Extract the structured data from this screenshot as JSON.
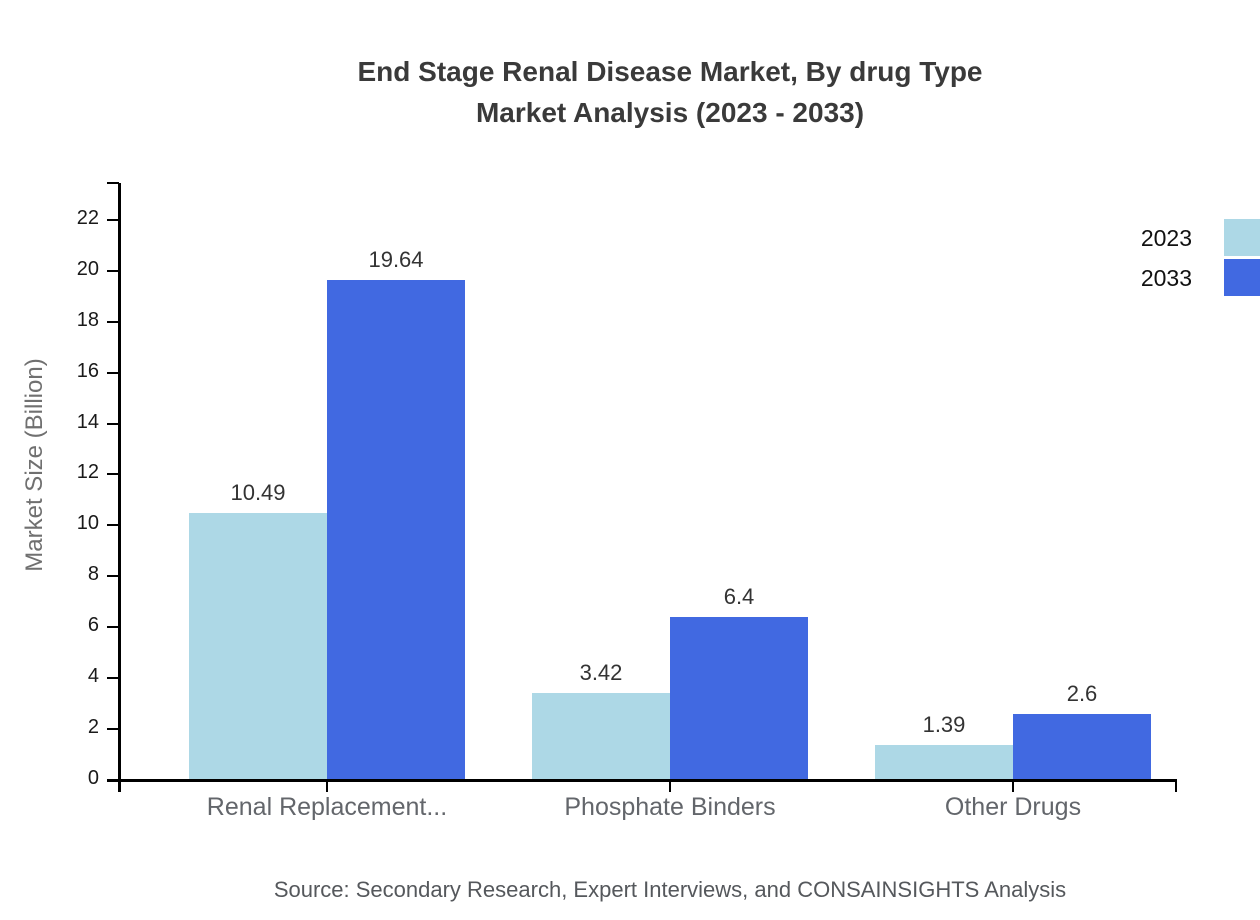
{
  "title": {
    "line1": "End Stage Renal Disease Market, By drug Type",
    "line2": "Market Analysis (2023 - 2033)"
  },
  "source": "Source: Secondary Research, Expert Interviews, and CONSAINSIGHTS Analysis",
  "chart_data": {
    "type": "bar",
    "title": "End Stage Renal Disease Market, By drug Type Market Analysis (2023 - 2033)",
    "categories": [
      "Renal Replacement...",
      "Phosphate Binders",
      "Other Drugs"
    ],
    "series": [
      {
        "name": "2023",
        "color": "#ADD8E6",
        "values": [
          10.49,
          3.42,
          1.39
        ]
      },
      {
        "name": "2033",
        "color": "#4169E1",
        "values": [
          19.64,
          6.4,
          2.6
        ]
      }
    ],
    "xlabel": "",
    "ylabel": "Market Size (Billion)",
    "ylim": [
      0,
      23.5
    ],
    "yticks": [
      0,
      2,
      4,
      6,
      8,
      10,
      12,
      14,
      16,
      18,
      20,
      22
    ],
    "grid": false,
    "legend_position": "top-right",
    "value_labels_shown": true
  }
}
